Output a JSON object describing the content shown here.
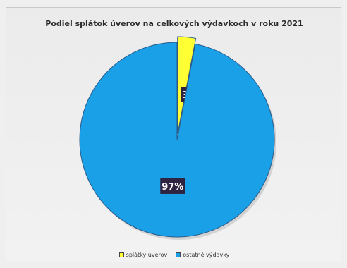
{
  "chart_data": {
    "type": "pie",
    "title": "Podiel splátok úverov na celkových výdavkoch v roku 2021",
    "categories": [
      "splátky úverov",
      "ostatné výdavky"
    ],
    "values": [
      3,
      97
    ],
    "data_labels": [
      "3%",
      "97%"
    ],
    "colors": [
      "#ffff33",
      "#1aa0e6"
    ],
    "legend_position": "bottom"
  }
}
